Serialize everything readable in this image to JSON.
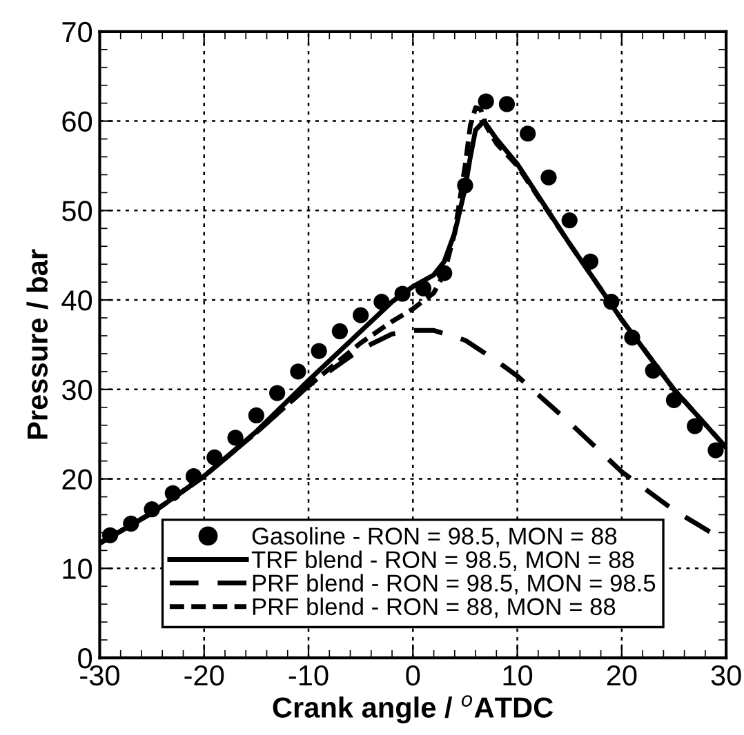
{
  "chart_data": {
    "type": "line",
    "xlabel": "Crank angle / $^{o}$ATDC",
    "ylabel": "Pressure / bar",
    "xlim": [
      -30,
      30
    ],
    "ylim": [
      0,
      70
    ],
    "xticks": [
      -30,
      -20,
      -10,
      0,
      10,
      20,
      30
    ],
    "yticks": [
      0,
      10,
      20,
      30,
      40,
      50,
      60,
      70
    ],
    "grid": true,
    "legend": "bottom",
    "series": [
      {
        "name": "Gasoline - RON = 98.5, MON = 88",
        "type": "scatter",
        "marker": "circle",
        "color": "#000000",
        "x": [
          -29,
          -27,
          -25,
          -23,
          -21,
          -19,
          -17,
          -15,
          -13,
          -11,
          -9,
          -7,
          -5,
          -3,
          -1,
          1,
          3,
          5,
          7,
          9,
          11,
          13,
          15,
          17,
          19,
          21,
          23,
          25,
          27,
          29
        ],
        "values": [
          13.7,
          15.0,
          16.6,
          18.4,
          20.3,
          22.4,
          24.6,
          27.1,
          29.6,
          32.0,
          34.3,
          36.5,
          38.3,
          39.8,
          40.7,
          41.3,
          43.0,
          52.8,
          62.2,
          61.9,
          58.6,
          53.7,
          48.9,
          44.3,
          39.8,
          35.8,
          32.1,
          28.8,
          25.9,
          23.2
        ]
      },
      {
        "name": "TRF blend - RON = 98.5, MON = 88",
        "line_style": "solid",
        "color": "#000000",
        "x": [
          -30,
          -25,
          -20,
          -15,
          -10,
          -5,
          -2,
          0,
          2,
          3,
          4,
          5,
          5.5,
          6,
          6.8,
          8,
          10,
          15,
          20,
          25,
          30
        ],
        "values": [
          12.8,
          16.2,
          20.3,
          25.3,
          31.0,
          36.5,
          39.8,
          41.5,
          42.8,
          44.3,
          47.5,
          52.5,
          56.0,
          59.0,
          60.0,
          58.0,
          55.2,
          46.3,
          37.8,
          30.0,
          23.5
        ]
      },
      {
        "name": "PRF blend - RON = 98.5, MON = 98.5",
        "line_style": "dashed",
        "color": "#000000",
        "x": [
          -30,
          -25,
          -20,
          -15,
          -10,
          -5,
          -2,
          0,
          2,
          5,
          8,
          10,
          15,
          20,
          25,
          30
        ],
        "values": [
          12.8,
          16.2,
          20.3,
          25.2,
          30.4,
          34.5,
          36.2,
          36.6,
          36.6,
          35.5,
          33.2,
          31.5,
          26.3,
          20.8,
          16.5,
          13.0
        ]
      },
      {
        "name": "PRF blend - RON = 88, MON = 88",
        "line_style": "dotted",
        "color": "#000000",
        "x": [
          -30,
          -25,
          -20,
          -15,
          -10,
          -5,
          -2,
          0,
          2,
          3,
          4,
          5,
          5.5,
          6,
          6.5,
          7,
          8,
          10,
          15,
          20,
          25,
          30
        ],
        "values": [
          12.8,
          16.2,
          20.3,
          25.2,
          30.4,
          35.2,
          37.6,
          39.0,
          40.8,
          43.0,
          47.5,
          55.0,
          59.5,
          61.5,
          61.3,
          59.5,
          57.5,
          55.0,
          46.3,
          37.8,
          30.0,
          23.5
        ]
      }
    ]
  }
}
